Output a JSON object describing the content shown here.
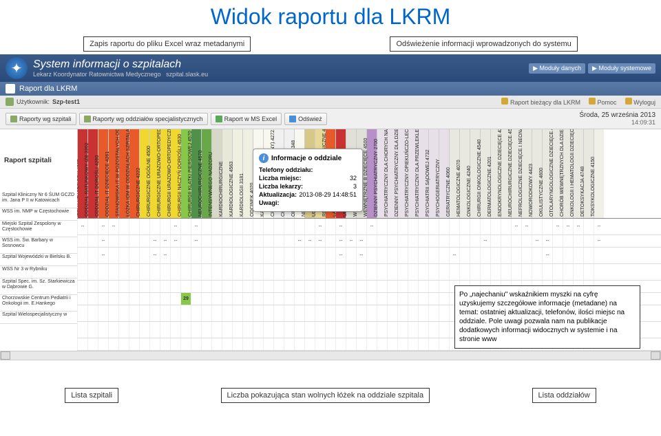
{
  "title": "Widok raportu dla LKRM",
  "annotations": {
    "top_left": "Zapis raportu do pliku Excel wraz metadanymi",
    "top_right": "Odświeżenie informacji wprowadzonych do systemu",
    "hover": "Po „najechaniu\" wskaźnikiem myszki na cyfrę uzyskujemy szczegółowe informacje (metadane) na temat: ostatniej aktualizacji, telefonów, ilości miejsc na oddziale. Pole uwagi pozwala nam na publikacje dodatkowych informacji widocznych w systemie i na stronie www",
    "bottom_left": "Lista szpitali",
    "bottom_mid": "Liczba pokazująca stan wolnych łóżek na oddziale szpitala",
    "bottom_right": "Lista oddziałów"
  },
  "header": {
    "title": "System informacji o szpitalach",
    "subtitle": "Lekarz Koordynator Ratownictwa Medycznego",
    "domain": "szpital.slask.eu",
    "btn_data": "Moduły danych",
    "btn_system": "Moduły systemowe"
  },
  "subheader": {
    "label": "Raport dla LKRM"
  },
  "status": {
    "user_label": "Użytkownik:",
    "user": "Szp-test1",
    "link1": "Raport bieżący dla LKRM",
    "link2": "Pomoc",
    "link3": "Wyloguj"
  },
  "toolbar": {
    "btn1": "Raporty wg szpitali",
    "btn2": "Raporty wg oddziałów specjalistycznych",
    "btn3": "Raport w MS Excel",
    "btn4": "Odśwież",
    "date": "Środa, 25 września 2013",
    "time": "14:09:31"
  },
  "report_label": "Raport szpitali",
  "tooltip": {
    "header": "Informacje o oddziale",
    "l1": "Telefony oddziału:",
    "l2": "Liczba miejsc:",
    "v2": "32",
    "l3": "Liczba lekarzy:",
    "v3": "3",
    "l4": "Aktualizacja:",
    "v4": "2013-08-29 14:48:51",
    "l5": "Uwagi:"
  },
  "columns": [
    {
      "label": "IZBA PRZYJĘĆ/SOR 4902",
      "color": "#c83232"
    },
    {
      "label": "ODDZIAŁ RATUNKOWY IZB 3302",
      "color": "#c83232"
    },
    {
      "label": "ODDZIAŁ IT DOROŚLI 4260",
      "color": "#e85a2a"
    },
    {
      "label": "ODDZIAŁ IT DZIECIĘCE 4261",
      "color": "#e85a2a"
    },
    {
      "label": "STANOWISKA IT W POZOSTAŁYCH ODDZIAŁ",
      "color": "#e85a2a"
    },
    {
      "label": "ŁÓŻKA IOM W ODDZIAŁACH SZPITALA",
      "color": "#e85a2a"
    },
    {
      "label": "CHIRURGICZNE 4222",
      "color": "#f0d830"
    },
    {
      "label": "CHIRURGICZNE OGÓLNE 4500",
      "color": "#f0d830"
    },
    {
      "label": "CHIRURGICZNE URAZOWO-ORTOPEDYCZNE",
      "color": "#f0d830"
    },
    {
      "label": "CHIRURGII URAZOWO-ORTOPEDYCZNEJ DLA",
      "color": "#f0d830"
    },
    {
      "label": "CHIRURGII NACZYŃ DORIOŚLI 4530",
      "color": "#88c848"
    },
    {
      "label": "CHIRURGII KLATKI PIERSIOWEJ 4570",
      "color": "#509048"
    },
    {
      "label": "NEUROCHIRURGICZNE 4570",
      "color": "#68a848"
    },
    {
      "label": "INTENSYWNEGO NADZORU",
      "color": "#d8d8c8"
    },
    {
      "label": "KARDIOCHIRURGICZNE",
      "color": "#e8e8d8"
    },
    {
      "label": "KARDIOLOGICZNE 4563",
      "color": "#f0f0e0"
    },
    {
      "label": "KARDIOLOGII 3181",
      "color": "#f0f0e0"
    },
    {
      "label": "ODCINEK 4020",
      "color": "#f8f8f0"
    },
    {
      "label": "KARDIOLOGII",
      "color": "#f8f8f0"
    },
    {
      "label": "CHORÓB (PULMONOLOGICZNY) 4272",
      "color": "#f0f0f0"
    },
    {
      "label": "CHORÓB",
      "color": "#f0f0f0"
    },
    {
      "label": "OBSERWACYJNO-ZAKAŹNY 4348",
      "color": "#f8f8f0"
    },
    {
      "label": "NEUROLOGICZNE 4280",
      "color": "#d8c888"
    },
    {
      "label": "UDAROWE 4222",
      "color": "#e8d898"
    },
    {
      "label": "REHABILITACYJNE ONKOLOGICZNE 4630",
      "color": "#e85a2a"
    },
    {
      "label": "LARYNGOLOGICZNE 4616",
      "color": "#c83232"
    },
    {
      "label": "UROLOGICZNE 4640",
      "color": "#e0e0d8"
    },
    {
      "label": "WEWNĘTRZNE 4000",
      "color": "#e0e0d8"
    },
    {
      "label": "WEWNĘTRZNE B DZIECIĘCE 4500",
      "color": "#b890c8"
    },
    {
      "label": "DZIENNY PSYCHIATRYCZNY 2700",
      "color": "#e8e0e8"
    },
    {
      "label": "PSYCHIATRYCZNY DLA CHORYCH NA GRUŹLI",
      "color": "#e8e0e8"
    },
    {
      "label": "DZIENNY PSYCHIATRYCZNY DLA DZIECI I M",
      "color": "#e8e0e8"
    },
    {
      "label": "PSYCHIATRYCZNY OPIEKUŃCZO-LECZNICZY",
      "color": "#e8e0e8"
    },
    {
      "label": "PSYCHIATRYCZNY DLA PRZEWLEKLE",
      "color": "#e8e0e8"
    },
    {
      "label": "PSYCHIATRII SĄDOWEJ 4732",
      "color": "#e8e0e8"
    },
    {
      "label": "PSYCHOGERIATRYCZNY",
      "color": "#e8e0e8"
    },
    {
      "label": "GERIATRYCZNE 4060",
      "color": "#e8e8e0"
    },
    {
      "label": "HEMATOLOGICZNE 4070",
      "color": "#e8e8e0"
    },
    {
      "label": "ONKOLOGICZNE 4240",
      "color": "#e8e8e0"
    },
    {
      "label": "CHIRURGII ONKOLOGICZNE 4540",
      "color": "#e8e8e0"
    },
    {
      "label": "DERMATOLOGICZNE 4201",
      "color": "#e8e8e0"
    },
    {
      "label": "ENDOKRYNOLOGICZNE DZIECIĘCE 4231",
      "color": "#e8e8e0"
    },
    {
      "label": "NEUROCHIRURGICZNE DZIECIĘCE 4571",
      "color": "#e8e8e0"
    },
    {
      "label": "NEFROLOGICZNE DZIECIĘCE I NEONATOLOGII 4611",
      "color": "#e8e8e0"
    },
    {
      "label": "NOWORODKOWY 4423",
      "color": "#e8e8e0"
    },
    {
      "label": "OKULISTYCZNE 4600",
      "color": "#e8e8e0"
    },
    {
      "label": "OTOLARYNGOLOGICZNE DZIECIĘCE 4580",
      "color": "#e8e8e0"
    },
    {
      "label": "CHORÓB WEWNĘTRZNYCH DLA DZIECI 4031",
      "color": "#e8e8e0"
    },
    {
      "label": "ONKOLOGII I HEMATOLOGII DZIECIĘCEJ 4",
      "color": "#e8e8e0"
    },
    {
      "label": "DETOKSYKACJA 4748",
      "color": "#e8e8e0"
    },
    {
      "label": "TOKSYKOLOGICZNE 4150",
      "color": "#f0f0e8"
    }
  ],
  "hospitals": [
    {
      "name": "Szpital Kliniczny Nr 6 ŚUM GCZD im. Jana P II w Katowicach",
      "tall": true,
      "vals": [
        "--",
        "",
        "--",
        "--",
        "",
        "",
        "",
        "",
        "",
        "--",
        "",
        "--",
        "",
        "",
        "",
        "",
        "",
        "",
        "",
        "",
        "",
        "",
        "",
        "--",
        "",
        "--",
        "",
        "",
        "--",
        "",
        "",
        "",
        "",
        "",
        "",
        "",
        "",
        "",
        "",
        "",
        "",
        "",
        "--",
        "--",
        "",
        "",
        "--",
        "--",
        "--",
        "",
        "--"
      ]
    },
    {
      "name": "WSS im. NMP w Częstochowie",
      "vals": [
        "",
        "",
        "--",
        "",
        "",
        "",
        "",
        "--",
        "--",
        "--",
        "",
        "--",
        "",
        "",
        "",
        "",
        "",
        "",
        "",
        "",
        "",
        "--",
        "--",
        "--",
        "",
        "--",
        "--",
        "--",
        "",
        "",
        "",
        "",
        "",
        "",
        "",
        "",
        "",
        "",
        "",
        "--",
        "",
        "",
        "",
        "",
        "--",
        "--",
        "",
        "",
        "",
        "",
        "--"
      ]
    },
    {
      "name": "Miejski Szpital Zespolony w Częstochowie",
      "tall": true,
      "vals": [
        "",
        "",
        "--",
        "",
        "",
        "",
        "",
        "--",
        "--",
        "",
        "",
        "",
        "",
        "",
        "",
        "",
        "",
        "",
        "",
        "",
        "",
        "",
        "",
        "",
        "",
        "--",
        "",
        "--",
        "",
        "",
        "",
        "",
        "",
        "",
        "",
        "",
        "--",
        "",
        "",
        "",
        "",
        "",
        "",
        "",
        "",
        "--",
        "",
        "",
        "",
        "",
        ""
      ]
    },
    {
      "name": "WSS im. Św. Barbary w Sosnowcu",
      "tall": true,
      "vals": [
        "",
        "",
        "",
        "",
        "",
        "",
        "",
        "",
        "",
        "",
        "",
        "",
        "",
        "",
        "",
        "",
        "",
        "",
        "",
        "",
        "",
        "",
        "",
        "",
        "",
        "",
        "",
        "",
        "",
        "",
        "",
        "",
        "",
        "",
        "",
        "",
        "",
        "",
        "",
        "",
        "",
        "",
        "",
        "",
        "",
        "",
        "",
        "",
        "",
        "",
        ""
      ]
    },
    {
      "name": "Szpital Wojewódzki w Bielsku B.",
      "vals": [
        "",
        "",
        "",
        "",
        "",
        "",
        "",
        "",
        "",
        "",
        "",
        "",
        "",
        "",
        "",
        "",
        "",
        "",
        "",
        "",
        "",
        "",
        "",
        "",
        "",
        "",
        "",
        "",
        "",
        "",
        "",
        "",
        "",
        "",
        "",
        "",
        "",
        "",
        "",
        "",
        "",
        "",
        "",
        "",
        "",
        "",
        "",
        "",
        "",
        "",
        ""
      ]
    },
    {
      "name": "WSS Nr 3 w Rybniku",
      "vals": [
        "",
        "",
        "",
        "",
        "",
        "",
        "",
        "",
        "",
        "",
        "29",
        "",
        "",
        "",
        "",
        "",
        "",
        "",
        "",
        "",
        "",
        "",
        "",
        "",
        "",
        "",
        "",
        "",
        "",
        "",
        "",
        "",
        "",
        "",
        "",
        "",
        "",
        "",
        "",
        "",
        "",
        "",
        "",
        "",
        "",
        "",
        "",
        "",
        "",
        "",
        ""
      ]
    },
    {
      "name": "Szpital Spec. im. Sz. Starkiewicza w Dąbrowie G.",
      "tall": true,
      "vals": [
        "",
        "",
        "",
        "",
        "",
        "",
        "",
        "",
        "",
        "",
        "",
        "",
        "",
        "",
        "",
        "",
        "",
        "",
        "",
        "",
        "",
        "",
        "",
        "",
        "",
        "",
        "",
        "",
        "",
        "",
        "",
        "",
        "",
        "",
        "",
        "",
        "",
        "",
        "",
        "",
        "",
        "",
        "",
        "",
        "",
        "",
        "",
        "",
        "",
        "",
        ""
      ]
    },
    {
      "name": "Chorzowskie Centrum Pediatrii i Onkologii im. E.Hankego",
      "tall": true,
      "vals": [
        "",
        "",
        "",
        "",
        "",
        "",
        "",
        "",
        "",
        "",
        "",
        "",
        "",
        "",
        "",
        "",
        "",
        "",
        "",
        "",
        "",
        "",
        "",
        "",
        "",
        "",
        "",
        "",
        "",
        "",
        "",
        "",
        "",
        "",
        "",
        "",
        "",
        "",
        "",
        "",
        "",
        "",
        "",
        "",
        "",
        "",
        "",
        "",
        "",
        "",
        ""
      ]
    },
    {
      "name": "Szpital Wielospecjalistyczny w",
      "vals": [
        "",
        "",
        "",
        "",
        "",
        "",
        "",
        "",
        "",
        "",
        "",
        "",
        "",
        "",
        "",
        "",
        "",
        "",
        "",
        "",
        "",
        "",
        "",
        "",
        "",
        "",
        "",
        "",
        "",
        "",
        "",
        "",
        "",
        "",
        "",
        "",
        "",
        "",
        "",
        "",
        "",
        "",
        "",
        "",
        "",
        "",
        "",
        "",
        "",
        "",
        ""
      ]
    }
  ]
}
